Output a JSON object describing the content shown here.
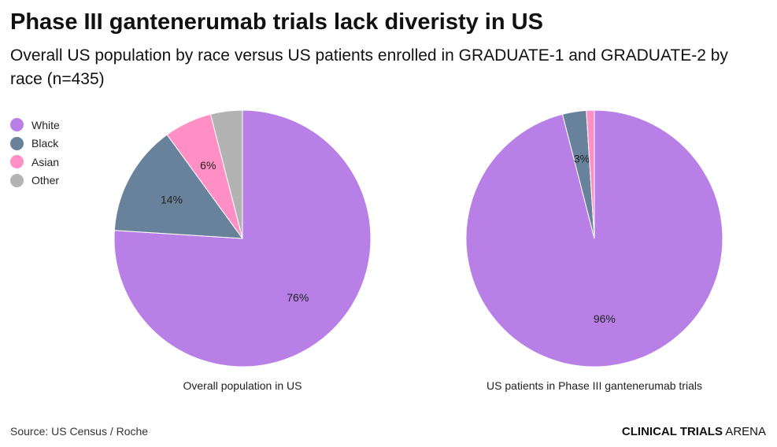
{
  "title": "Phase III gantenerumab trials lack diveristy in US",
  "subtitle": "Overall US population by race versus US patients enrolled in GRADUATE-1 and GRADUATE-2 by race (n=435)",
  "source": "Source: US Census / Roche",
  "brand": {
    "bold": "CLINICAL TRIALS",
    "light": " ARENA"
  },
  "chart_data": [
    {
      "type": "pie",
      "title": "Overall population in US",
      "categories": [
        "White",
        "Black",
        "Asian",
        "Other"
      ],
      "values": [
        76,
        14,
        6,
        4
      ],
      "labels": [
        "76%",
        "14%",
        "6%",
        ""
      ],
      "colors": [
        "#b87fe6",
        "#67829a",
        "#ff8fc4",
        "#b3b3b3"
      ]
    },
    {
      "type": "pie",
      "title": "US patients in Phase III gantenerumab trials",
      "categories": [
        "White",
        "Black",
        "Asian",
        "Other"
      ],
      "values": [
        96,
        3,
        1,
        0
      ],
      "labels": [
        "96%",
        "3%",
        "",
        ""
      ],
      "colors": [
        "#b87fe6",
        "#67829a",
        "#ff8fc4",
        "#b3b3b3"
      ]
    }
  ],
  "legend": [
    {
      "label": "White",
      "color": "#b87fe6"
    },
    {
      "label": "Black",
      "color": "#67829a"
    },
    {
      "label": "Asian",
      "color": "#ff8fc4"
    },
    {
      "label": "Other",
      "color": "#b3b3b3"
    }
  ]
}
